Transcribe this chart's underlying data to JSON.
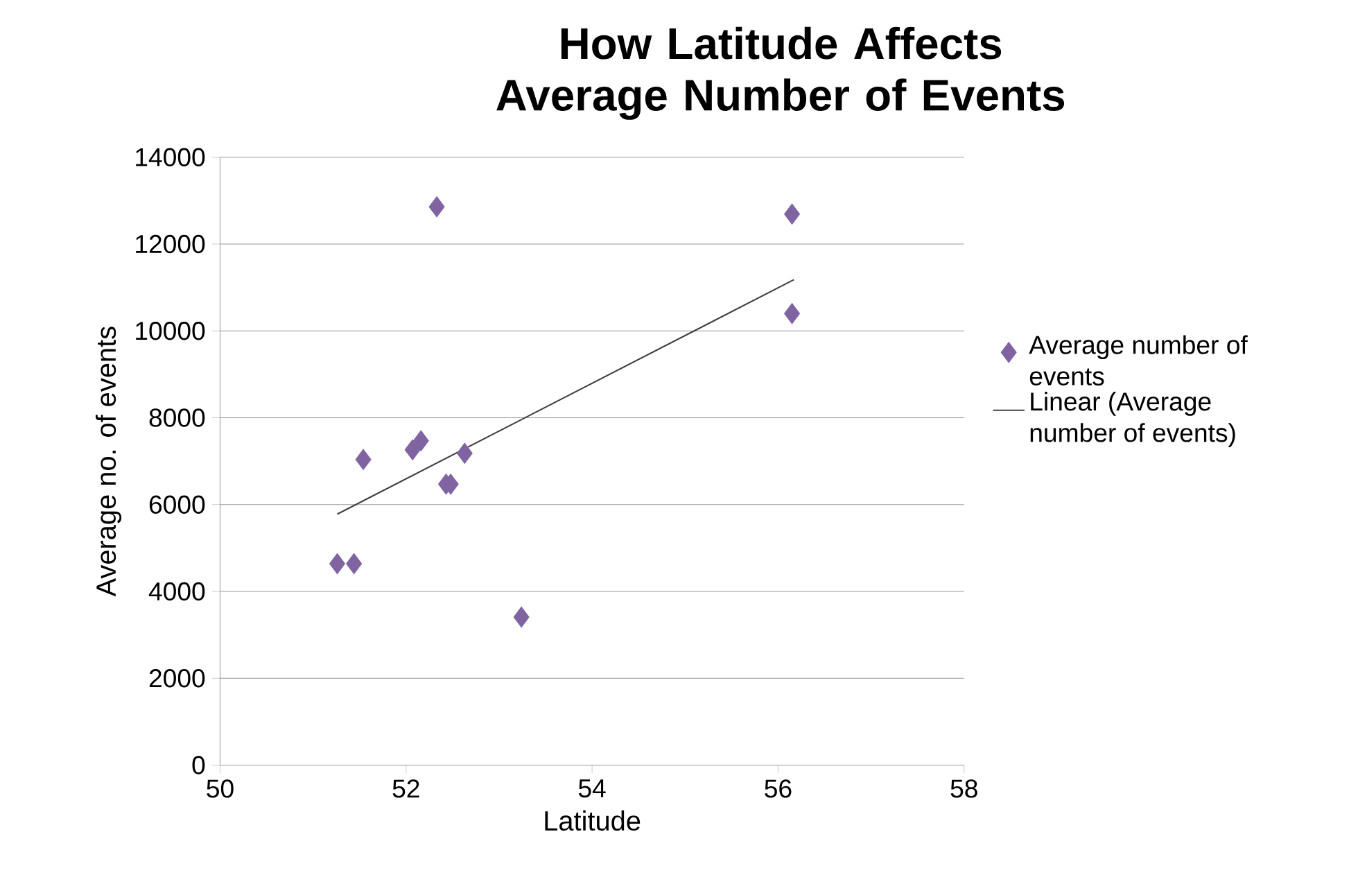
{
  "chart_data": {
    "type": "scatter",
    "title": "How Latitude Affects Average Number of Events",
    "xlabel": "Latitude",
    "ylabel": "Average no. of events",
    "xlim": [
      50,
      58
    ],
    "xticks": [
      50,
      52,
      54,
      56,
      58
    ],
    "ylim": [
      0,
      14000
    ],
    "yticks": [
      0,
      2000,
      4000,
      6000,
      8000,
      10000,
      12000,
      14000
    ],
    "grid": "y",
    "legend": "right",
    "series": [
      {
        "name": "Average number of events",
        "marker": "diamond",
        "color": "#8064a2",
        "x": [
          52.33,
          56.15,
          56.15,
          51.54,
          52.07,
          52.16,
          52.63,
          52.43,
          52.48,
          51.26,
          51.44,
          53.24
        ],
        "values": [
          12860,
          12690,
          10400,
          7040,
          7260,
          7470,
          7180,
          6470,
          6470,
          4640,
          4640,
          3410
        ]
      },
      {
        "name": "Linear (Average number of events)",
        "type": "line",
        "marker": "none",
        "color": "#404040",
        "x": [
          51.26,
          56.17
        ],
        "values": [
          5780,
          11180
        ]
      }
    ]
  }
}
